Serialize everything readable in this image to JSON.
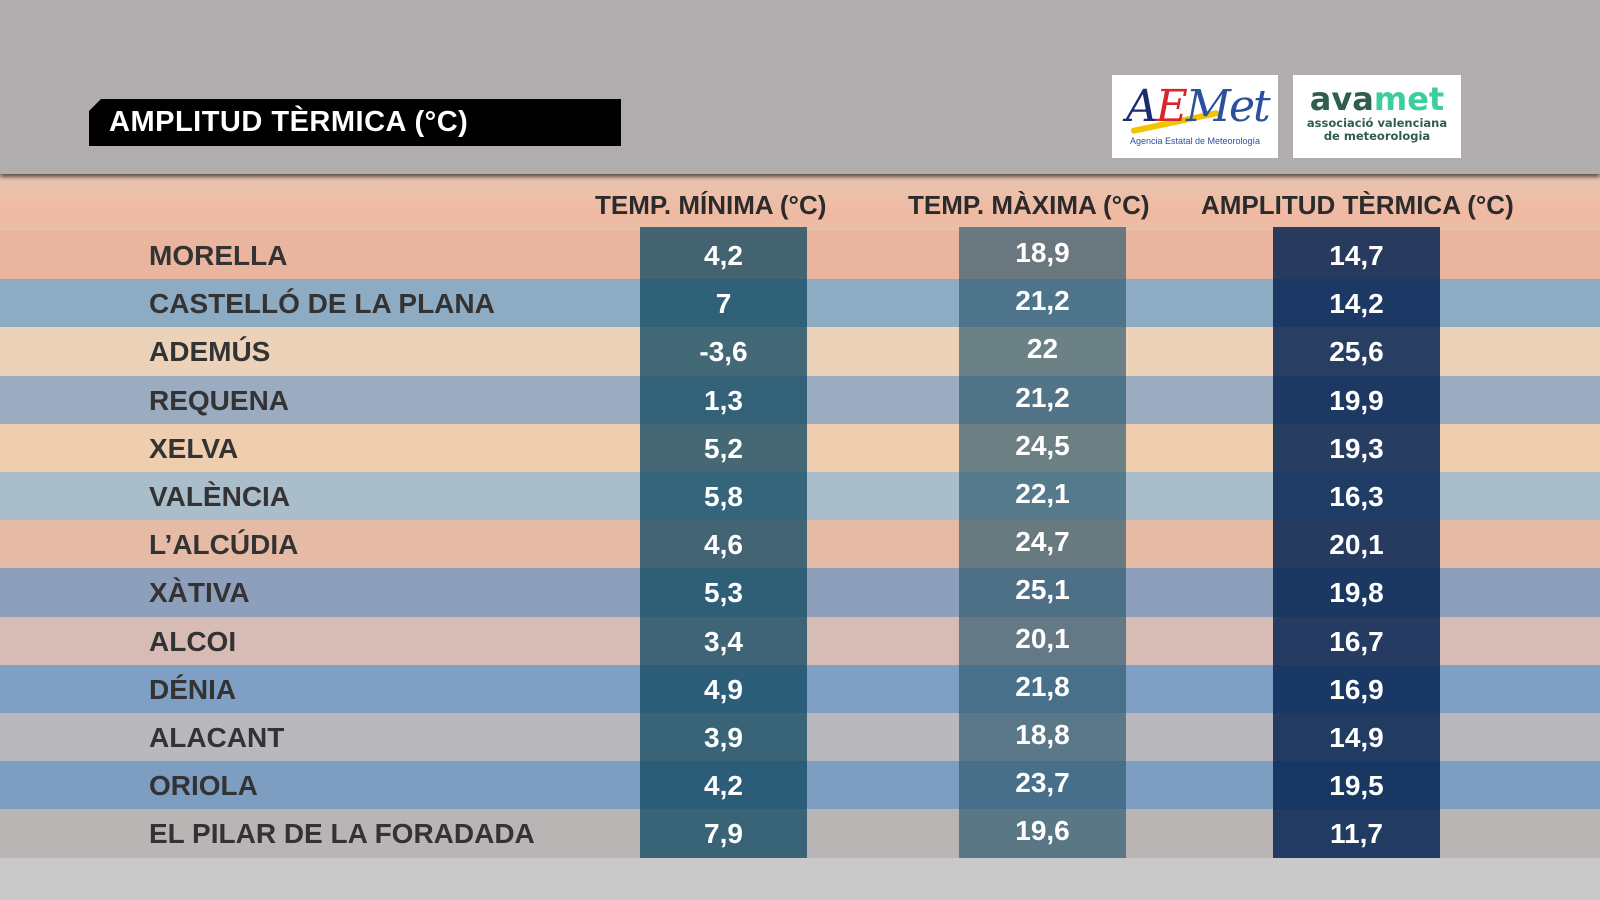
{
  "title": "AMPLITUD TÈRMICA (°C)",
  "logos": {
    "aemet": {
      "word": "AEMet",
      "subtitle": "Agencia Estatal de Meteorología"
    },
    "avamet": {
      "word_part1": "ava",
      "word_part2": "met",
      "subtitle_line1": "associació valenciana",
      "subtitle_line2": "de meteorologia"
    }
  },
  "columns": [
    "TEMP. MÍNIMA (°C)",
    "TEMP. MÀXIMA (°C)",
    "AMPLITUD TÈRMICA (°C)"
  ],
  "rows": [
    {
      "name": "MORELLA",
      "min": "4,2",
      "max": "18,9",
      "amp": "14,7"
    },
    {
      "name": "CASTELLÓ DE LA PLANA",
      "min": "7",
      "max": "21,2",
      "amp": "14,2"
    },
    {
      "name": "ADEMÚS",
      "min": "-3,6",
      "max": "22",
      "amp": "25,6"
    },
    {
      "name": "REQUENA",
      "min": "1,3",
      "max": "21,2",
      "amp": "19,9"
    },
    {
      "name": "XELVA",
      "min": "5,2",
      "max": "24,5",
      "amp": "19,3"
    },
    {
      "name": "VALÈNCIA",
      "min": "5,8",
      "max": "22,1",
      "amp": "16,3"
    },
    {
      "name": "L’ALCÚDIA",
      "min": "4,6",
      "max": "24,7",
      "amp": "20,1"
    },
    {
      "name": "XÀTIVA",
      "min": "5,3",
      "max": "25,1",
      "amp": "19,8"
    },
    {
      "name": "ALCOI",
      "min": "3,4",
      "max": "20,1",
      "amp": "16,7"
    },
    {
      "name": "DÉNIA",
      "min": "4,9",
      "max": "21,8",
      "amp": "16,9"
    },
    {
      "name": "ALACANT",
      "min": "3,9",
      "max": "18,8",
      "amp": "14,9"
    },
    {
      "name": "ORIOLA",
      "min": "4,2",
      "max": "23,7",
      "amp": "19,5"
    },
    {
      "name": "EL PILAR DE LA FORADADA",
      "min": "7,9",
      "max": "19,6",
      "amp": "11,7"
    }
  ],
  "colors": {
    "header_bg": "#b1adae",
    "min_col": "#2a5f74",
    "max_col": "#3d6a7c",
    "amp_col": "#16385a"
  }
}
